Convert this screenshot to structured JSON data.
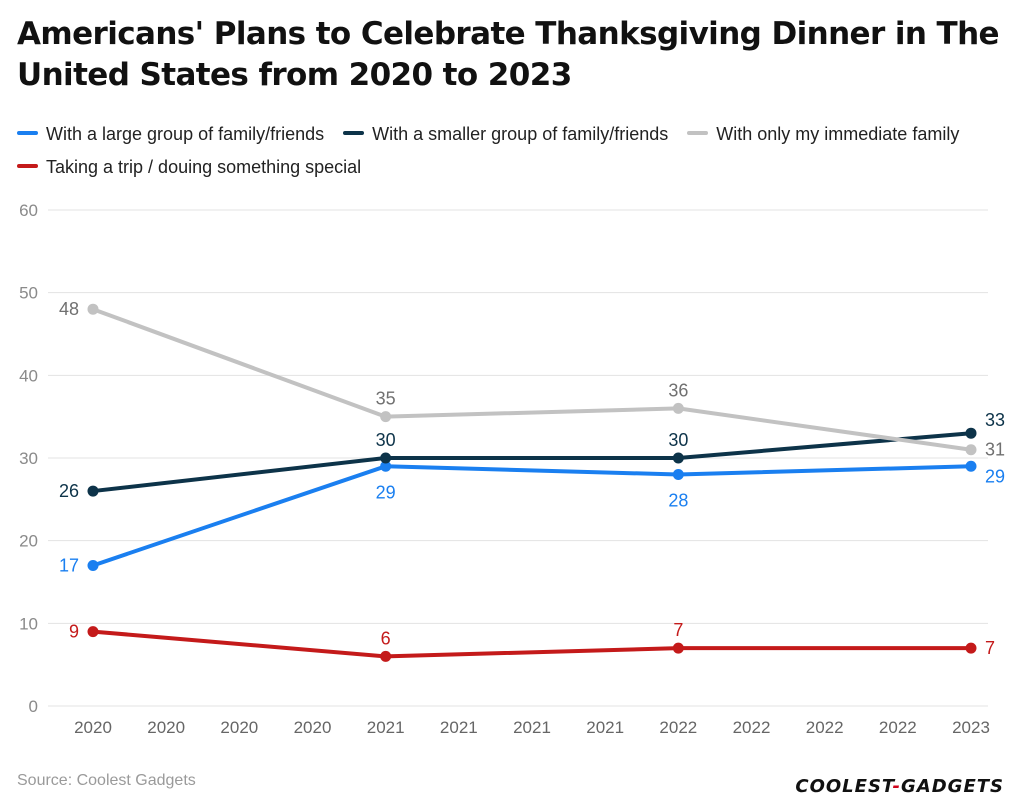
{
  "title": "Americans' Plans to Celebrate Thanksgiving Dinner in The United States from 2020 to 2023",
  "source": "Source: Coolest Gadgets",
  "brand": {
    "left": "COOLEST",
    "sep": "-",
    "right": "GADGETS"
  },
  "colors": {
    "grid": "#e3e3e3",
    "axis_text": "#8a8a8a"
  },
  "chart_data": {
    "type": "line",
    "title": "Americans' Plans to Celebrate Thanksgiving Dinner in The United States from 2020 to 2023",
    "x_tick_labels": [
      "2020",
      "2020",
      "2020",
      "2020",
      "2021",
      "2021",
      "2021",
      "2021",
      "2022",
      "2022",
      "2022",
      "2022",
      "2023"
    ],
    "x_tick_index_range": [
      0,
      12
    ],
    "y_ticks": [
      0,
      10,
      20,
      30,
      40,
      50,
      60
    ],
    "ylim": [
      0,
      60
    ],
    "grid": true,
    "legend_position": "top",
    "series": [
      {
        "name": "With a large group of family/friends",
        "color": "#1a7ff0",
        "x_index": [
          0,
          4,
          8,
          12
        ],
        "values": [
          17,
          29,
          28,
          29
        ],
        "label_pos": [
          "left",
          "below",
          "below",
          "right-below"
        ]
      },
      {
        "name": "With a smaller group of family/friends",
        "color": "#0d3349",
        "x_index": [
          0,
          4,
          8,
          12
        ],
        "values": [
          26,
          30,
          30,
          33
        ],
        "label_pos": [
          "left",
          "above",
          "above",
          "right-above"
        ]
      },
      {
        "name": "With only my immediate family",
        "color": "#c2c2c2",
        "label_color": "#707070",
        "x_index": [
          0,
          4,
          8,
          12
        ],
        "values": [
          48,
          35,
          36,
          31
        ],
        "label_pos": [
          "left",
          "above",
          "above",
          "right"
        ]
      },
      {
        "name": "Taking a trip / douing something special",
        "color": "#c41a1a",
        "x_index": [
          0,
          4,
          8,
          12
        ],
        "values": [
          9,
          6,
          7,
          7
        ],
        "label_pos": [
          "left",
          "above",
          "above",
          "right"
        ]
      }
    ]
  }
}
